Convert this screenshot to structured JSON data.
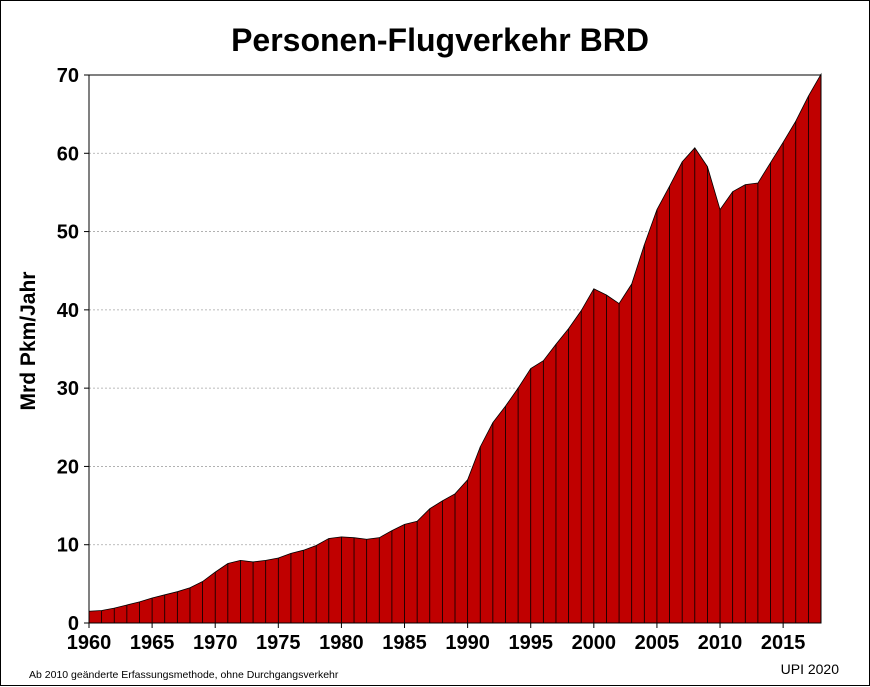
{
  "chart_data": {
    "type": "area",
    "title": "Personen-Flugverkehr BRD",
    "ylabel": "Mrd Pkm/Jahr",
    "xlabel": "",
    "xlim": [
      1960,
      2018
    ],
    "ylim": [
      0,
      70
    ],
    "x_ticks": [
      "1960",
      "1965",
      "1970",
      "1975",
      "1980",
      "1985",
      "1990",
      "1995",
      "2000",
      "2005",
      "2010",
      "2015"
    ],
    "y_ticks": [
      "0",
      "10",
      "20",
      "30",
      "40",
      "50",
      "60",
      "70"
    ],
    "grid": true,
    "fill_color": "#C00000",
    "x": [
      1960,
      1961,
      1962,
      1963,
      1964,
      1965,
      1966,
      1967,
      1968,
      1969,
      1970,
      1971,
      1972,
      1973,
      1974,
      1975,
      1976,
      1977,
      1978,
      1979,
      1980,
      1981,
      1982,
      1983,
      1984,
      1985,
      1986,
      1987,
      1988,
      1989,
      1990,
      1991,
      1992,
      1993,
      1994,
      1995,
      1996,
      1997,
      1998,
      1999,
      2000,
      2001,
      2002,
      2003,
      2004,
      2005,
      2006,
      2007,
      2008,
      2009,
      2010,
      2011,
      2012,
      2013,
      2014,
      2015,
      2016,
      2017,
      2018
    ],
    "values": [
      1.5,
      1.6,
      1.9,
      2.3,
      2.7,
      3.2,
      3.6,
      4.0,
      4.5,
      5.3,
      6.5,
      7.6,
      8.0,
      7.8,
      8.0,
      8.3,
      8.9,
      9.3,
      9.9,
      10.8,
      11.0,
      10.9,
      10.7,
      10.9,
      11.8,
      12.6,
      13.0,
      14.6,
      15.6,
      16.5,
      18.3,
      22.5,
      25.6,
      27.7,
      30.0,
      32.5,
      33.5,
      35.6,
      37.6,
      39.9,
      42.7,
      41.9,
      40.8,
      43.3,
      48.3,
      52.8,
      55.8,
      58.9,
      60.7,
      58.3,
      52.8,
      55.1,
      56.0,
      56.2,
      58.8,
      61.4,
      64.1,
      67.3,
      70.1
    ]
  },
  "footnote": "Ab 2010 geänderte Erfassungsmethode, ohne Durchgangsverkehr",
  "credit": "UPI 2020"
}
